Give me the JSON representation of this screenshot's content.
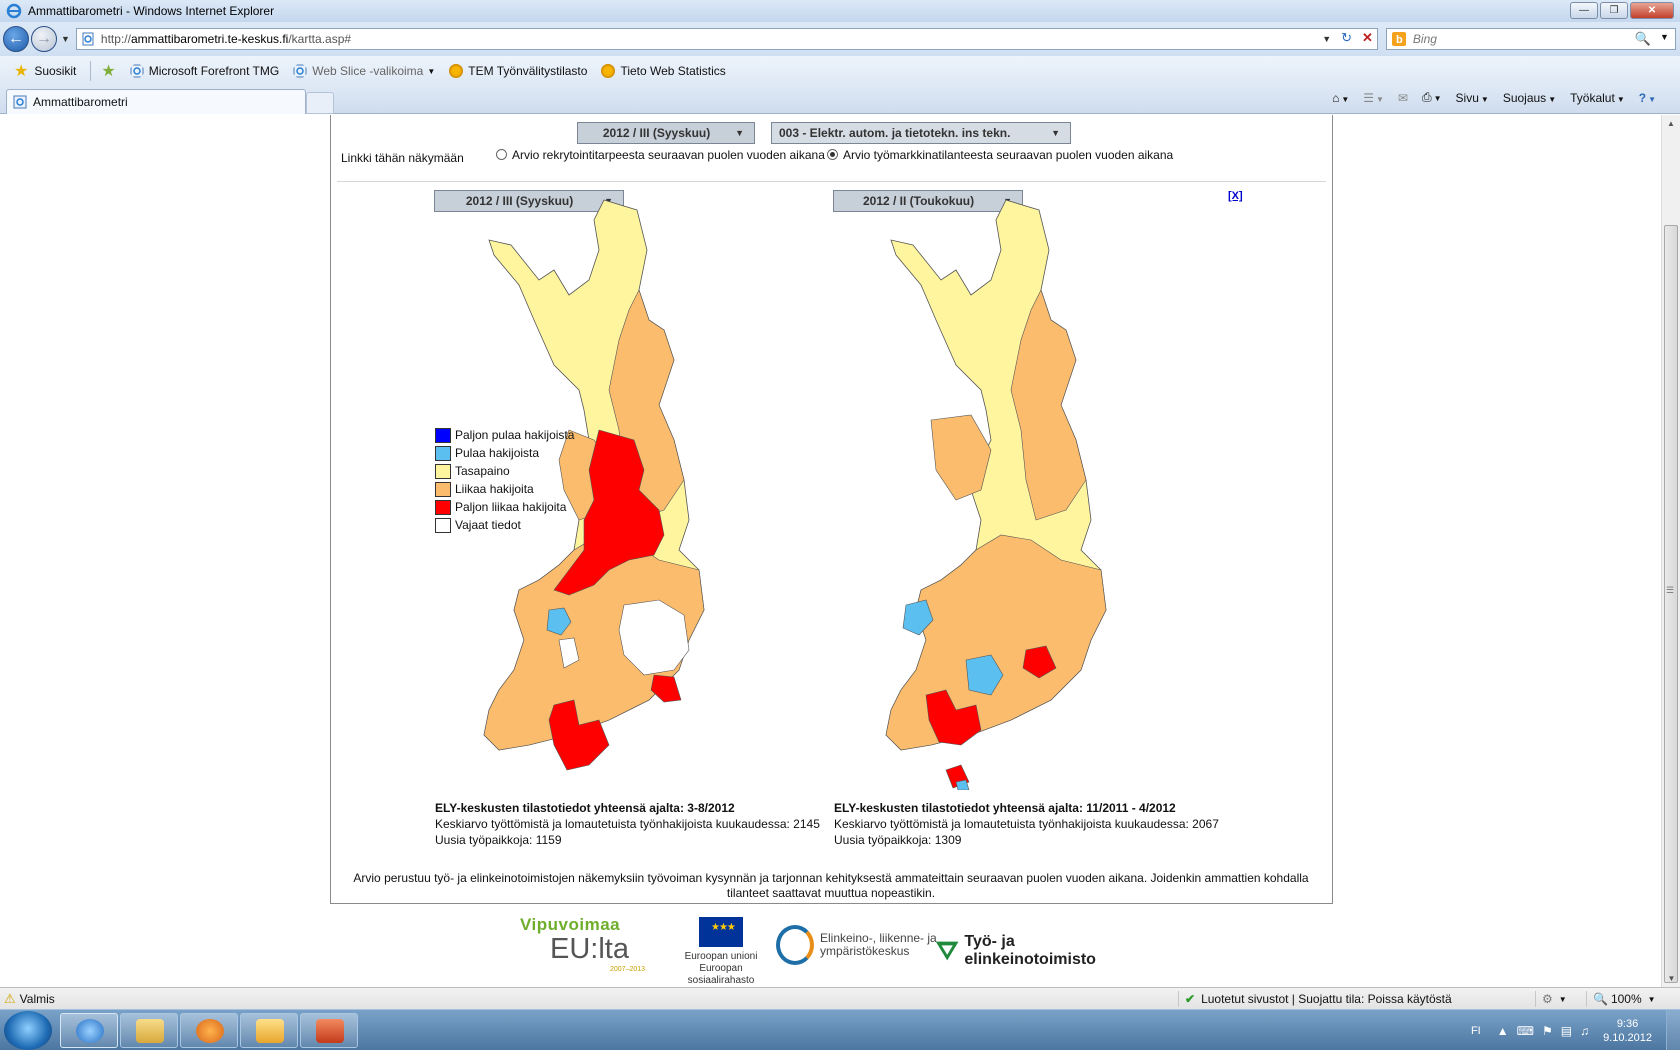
{
  "window": {
    "title": "Ammattibarometri - Windows Internet Explorer"
  },
  "address_bar": {
    "url_prefix": "http://",
    "url_host": "ammattibarometri.te-keskus.fi",
    "url_path": "/kartta.asp#"
  },
  "search": {
    "placeholder": "Bing"
  },
  "favorites_bar": {
    "favorites_label": "Suosikit",
    "items": [
      "Microsoft Forefront TMG",
      "Web Slice -valikoima",
      "TEM Työnvälitystilasto",
      "Tieto Web Statistics"
    ]
  },
  "tab": {
    "label": "Ammattibarometri"
  },
  "command_bar": {
    "sivu": "Sivu",
    "suojaus": "Suojaus",
    "tyokalut": "Työkalut"
  },
  "page": {
    "period_select": "2012 / III (Syyskuu)",
    "profession_select": "003 - Elektr. autom. ja tietotekn. ins tekn.",
    "link_label": "Linkki tähän näkymään",
    "option_recruitment": "Arvio rekrytointitarpeesta seuraavan puolen vuoden aikana",
    "option_market": "Arvio työmarkkinatilanteesta seuraavan puolen vuoden aikana",
    "left_map_select": "2012 / III (Syyskuu)",
    "right_map_select": "2012 / II (Toukokuu)",
    "close_link": "[X]",
    "legend": [
      {
        "label": "Paljon pulaa hakijoista",
        "color": "#0000ff"
      },
      {
        "label": "Pulaa hakijoista",
        "color": "#5bc0f0"
      },
      {
        "label": "Tasapaino",
        "color": "#fff59e"
      },
      {
        "label": "Liikaa hakijoita",
        "color": "#fbbd6d"
      },
      {
        "label": "Paljon liikaa hakijoita",
        "color": "#ff0000"
      },
      {
        "label": "Vajaat tiedot",
        "color": "#ffffff"
      }
    ],
    "left_stats": {
      "heading": "ELY-keskusten tilastotiedot yhteensä ajalta: 3-8/2012",
      "line1": "Keskiarvo työttömistä ja lomautetuista työnhakijoista kuukaudessa: 2145",
      "line2": "Uusia työpaikkoja: 1159"
    },
    "right_stats": {
      "heading": "ELY-keskusten tilastotiedot yhteensä ajalta: 11/2011 - 4/2012",
      "line1": "Keskiarvo työttömistä ja lomautetuista työnhakijoista kuukaudessa: 2067",
      "line2": "Uusia työpaikkoja: 1309"
    },
    "note": "Arvio perustuu työ- ja elinkeinotoimistojen näkemyksiin työvoiman kysynnän ja tarjonnan kehityksestä ammateittain seuraavan puolen vuoden aikana. Joidenkin ammattien kohdalla tilanteet saattavat muuttua nopeastikin.",
    "logos": {
      "vipuvoimaa": "Vipuvoimaa",
      "eulta": "EU:lta",
      "years": "2007–2013",
      "eu_union": "Euroopan unioni",
      "eu_fund": "Euroopan sosiaalirahasto",
      "ely_line1": "Elinkeino-, liikenne- ja",
      "ely_line2": "ympäristökeskus",
      "teo": "Työ- ja elinkeinotoimisto"
    }
  },
  "status_bar": {
    "status": "Valmis",
    "zone": "Luotetut sivustot | Suojattu tila: Poissa käytöstä",
    "zoom": "100%"
  },
  "taskbar": {
    "lang": "FI",
    "time": "9:36",
    "date": "9.10.2012"
  }
}
